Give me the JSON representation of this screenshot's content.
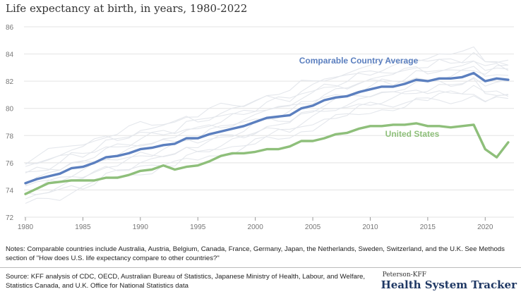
{
  "title": "Life expectancy at birth, in years, 1980-2022",
  "notes": "Notes: Comparable countries include Australia, Austria, Belgium, Canada, France, Germany, Japan, the Netherlands, Sweden, Switzerland, and the U.K. See Methods section of \"How does U.S. life expectancy compare to other countries?\"",
  "source": "Source: KFF analysis of CDC, OECD, Australian Bureau of Statistics, Japanese Ministry of Health, Labour, and Welfare, Statistics Canada, and U.K. Office for National Statistics data",
  "brand": {
    "small": "Peterson-KFF",
    "big": "Health System Tracker"
  },
  "colors": {
    "average": "#5b7fbf",
    "us": "#8ebf7a",
    "countries": "#e4e7ec",
    "grid": "#e3e3e3",
    "tick": "#777777"
  },
  "chart_data": {
    "type": "line",
    "title": "Life expectancy at birth, in years, 1980-2022",
    "x": [
      1980,
      1981,
      1982,
      1983,
      1984,
      1985,
      1986,
      1987,
      1988,
      1989,
      1990,
      1991,
      1992,
      1993,
      1994,
      1995,
      1996,
      1997,
      1998,
      1999,
      2000,
      2001,
      2002,
      2003,
      2004,
      2005,
      2006,
      2007,
      2008,
      2009,
      2010,
      2011,
      2012,
      2013,
      2014,
      2015,
      2016,
      2017,
      2018,
      2019,
      2020,
      2021,
      2022
    ],
    "xticks": [
      1980,
      1985,
      1990,
      1995,
      2000,
      2005,
      2010,
      2015,
      2020
    ],
    "yticks": [
      72,
      74,
      76,
      78,
      80,
      82,
      84,
      86
    ],
    "ylim": [
      72,
      86
    ],
    "xlim": [
      1980,
      2022.5
    ],
    "grid": true,
    "series": [
      {
        "name": "Comparable Country Average",
        "values": [
          74.5,
          74.8,
          75.0,
          75.2,
          75.6,
          75.7,
          76.0,
          76.4,
          76.5,
          76.7,
          77.0,
          77.1,
          77.3,
          77.4,
          77.8,
          77.8,
          78.1,
          78.3,
          78.5,
          78.7,
          79.0,
          79.3,
          79.4,
          79.5,
          80.0,
          80.2,
          80.6,
          80.8,
          80.9,
          81.2,
          81.4,
          81.6,
          81.6,
          81.8,
          82.1,
          82.0,
          82.2,
          82.2,
          82.3,
          82.6,
          82.0,
          82.2,
          82.1
        ]
      },
      {
        "name": "United States",
        "values": [
          73.7,
          74.1,
          74.5,
          74.6,
          74.7,
          74.7,
          74.7,
          74.9,
          74.9,
          75.1,
          75.4,
          75.5,
          75.8,
          75.5,
          75.7,
          75.8,
          76.1,
          76.5,
          76.7,
          76.7,
          76.8,
          77.0,
          77.0,
          77.2,
          77.6,
          77.6,
          77.8,
          78.1,
          78.2,
          78.5,
          78.7,
          78.7,
          78.8,
          78.8,
          78.9,
          78.7,
          78.7,
          78.6,
          78.7,
          78.8,
          77.0,
          76.4,
          77.5
        ]
      }
    ]
  }
}
